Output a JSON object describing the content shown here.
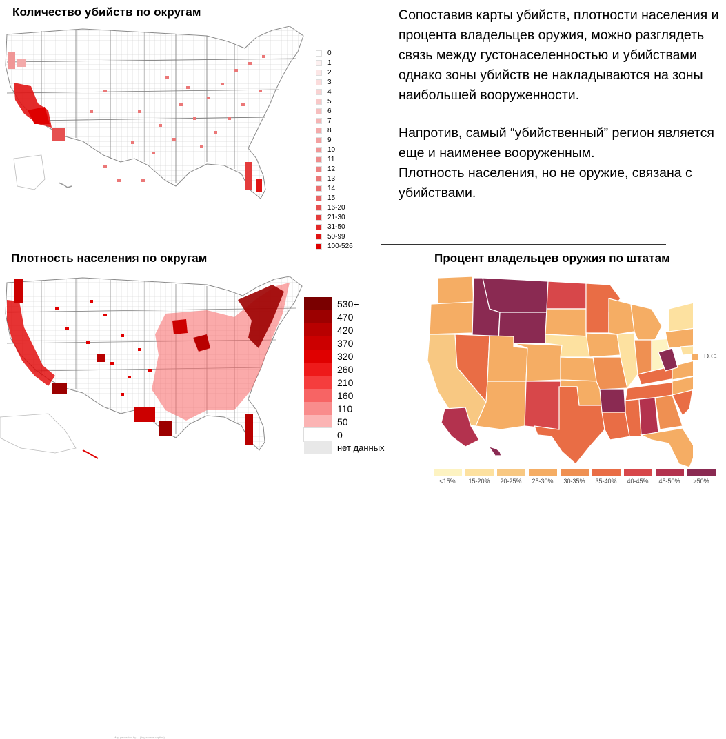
{
  "panels": {
    "murders": {
      "title": "Количество убийств по округам",
      "legend": [
        "0",
        "1",
        "2",
        "3",
        "4",
        "5",
        "6",
        "7",
        "8",
        "9",
        "10",
        "11",
        "12",
        "13",
        "14",
        "15",
        "16-20",
        "21-30",
        "31-50",
        "50-99",
        "100-526"
      ],
      "legend_colors": [
        "#ffffff",
        "#fdf0f0",
        "#fce6e6",
        "#fbdcdc",
        "#f9d2d2",
        "#f8c8c8",
        "#f6bebe",
        "#f5b4b4",
        "#f3aaaa",
        "#f2a0a0",
        "#f09696",
        "#ee8c8c",
        "#ed8282",
        "#eb7878",
        "#ea6e6e",
        "#e86464",
        "#e65050",
        "#e43c3c",
        "#e22828",
        "#e01414",
        "#de0000"
      ]
    },
    "density": {
      "title": "Плотность населения по округам",
      "legend": [
        "530+",
        "470",
        "420",
        "370",
        "320",
        "260",
        "210",
        "160",
        "110",
        "50",
        "0",
        "нет данных"
      ],
      "legend_colors": [
        "#7a0000",
        "#9c0000",
        "#b80000",
        "#cc0000",
        "#e00000",
        "#ee1a1a",
        "#f53d3d",
        "#f76464",
        "#f98c8c",
        "#fbb4b4",
        "#ffffff",
        "#e8e8e8"
      ]
    },
    "guns": {
      "title": "Процент владельцев оружия по штатам",
      "legend": [
        "<15%",
        "15-20%",
        "20-25%",
        "25-30%",
        "30-35%",
        "35-40%",
        "40-45%",
        "45-50%",
        ">50%"
      ],
      "legend_colors": [
        "#fdf3c2",
        "#fde1a0",
        "#f8c882",
        "#f5ad64",
        "#ef9052",
        "#e96d45",
        "#d7474a",
        "#b3324e",
        "#8a2a52"
      ],
      "dc_label": "D.C.",
      "dc_color": "#f5ad64"
    }
  },
  "commentary": {
    "p1": "Сопоставив карты убийств, плотности населения и процента владельцев оружия, можно разглядеть связь между густонаселенностью и убийствами однако зоны убийств не накладываются на зоны наибольшей вооруженности.",
    "p2": "Напротив, самый “убийственный” регион является еще и наименее вооруженным.",
    "p3": "Плотность населения, но не оружие, связана с убийствами."
  },
  "map_colors": {
    "murder_base": "#ffffff",
    "murder_line": "#bbbbbb",
    "murder_hot": "#e01414",
    "density_base": "#ffffff",
    "density_line": "#999999",
    "density_hot": "#9c0000",
    "gun_line": "#ffffff"
  },
  "source_note": "Map generated by ... (tiny source caption)"
}
